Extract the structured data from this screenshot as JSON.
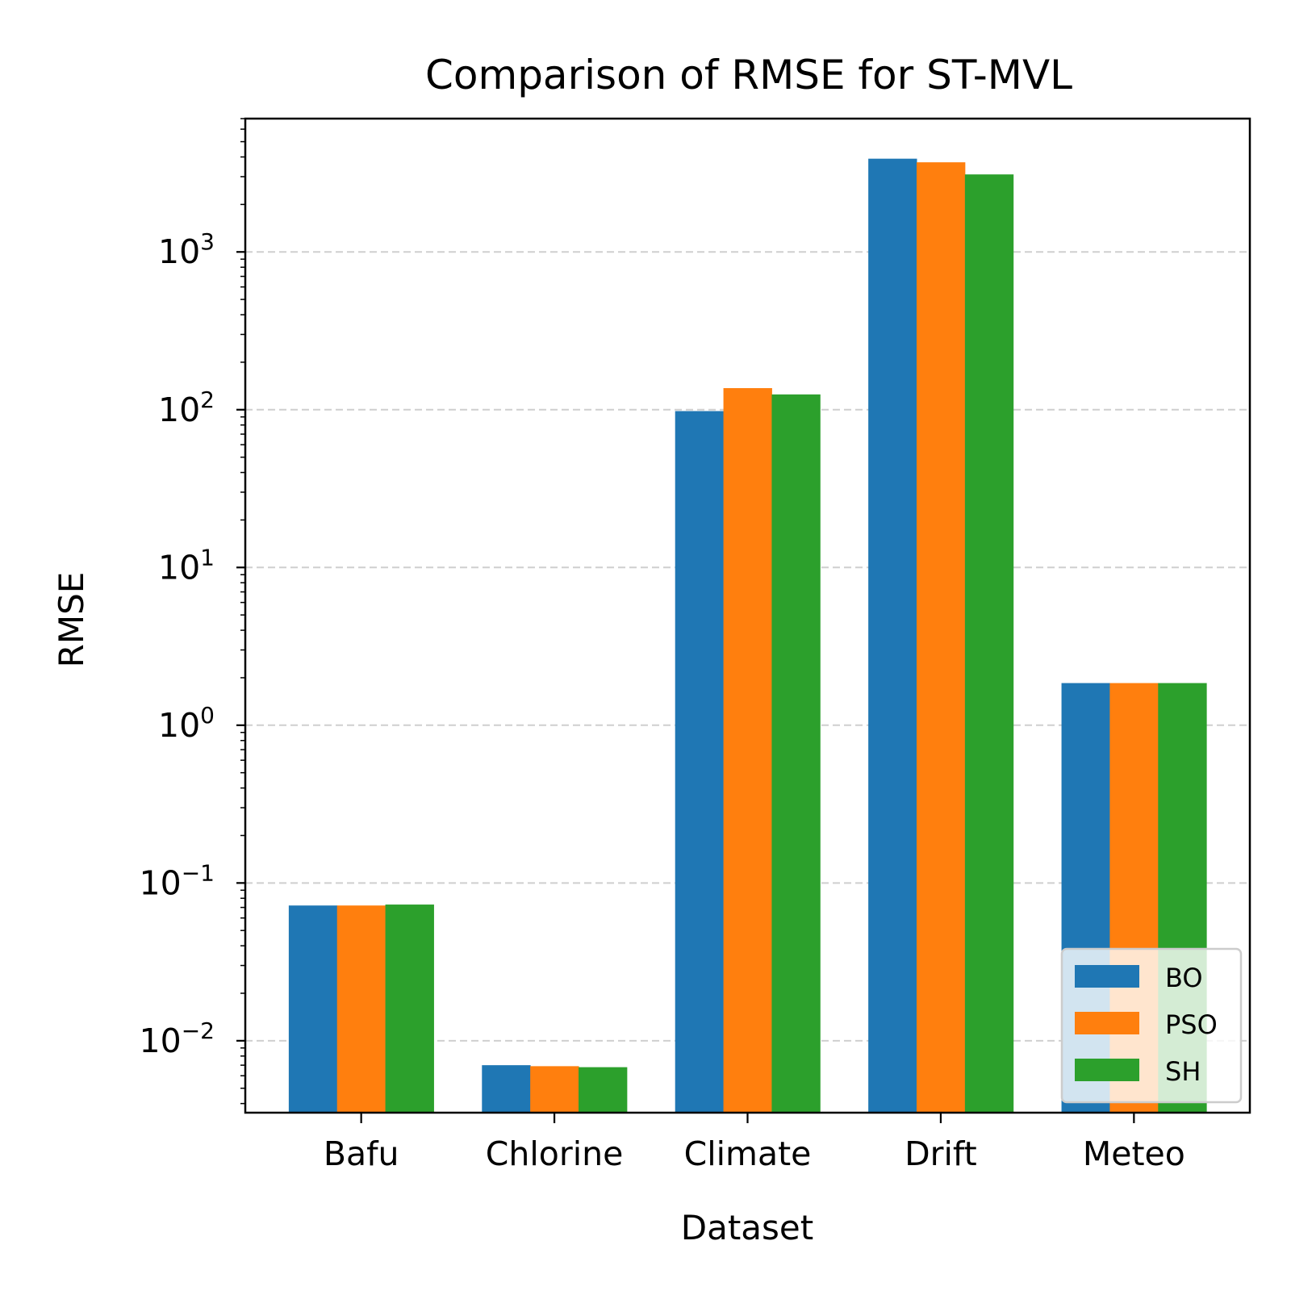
{
  "chart_data": {
    "type": "bar",
    "title": "Comparison of RMSE for ST-MVL",
    "xlabel": "Dataset",
    "ylabel": "RMSE",
    "yscale": "log",
    "ylim": [
      0.0035,
      7000
    ],
    "grid": "y-major dashed",
    "legend_position": "lower-right",
    "categories": [
      "Bafu",
      "Chlorine",
      "Climate",
      "Drift",
      "Meteo"
    ],
    "yticks": [
      {
        "base": "10",
        "exp": "−2",
        "value": 0.01
      },
      {
        "base": "10",
        "exp": "−1",
        "value": 0.1
      },
      {
        "base": "10",
        "exp": "0",
        "value": 1
      },
      {
        "base": "10",
        "exp": "1",
        "value": 10
      },
      {
        "base": "10",
        "exp": "2",
        "value": 100
      },
      {
        "base": "10",
        "exp": "3",
        "value": 1000
      }
    ],
    "series": [
      {
        "name": "BO",
        "color": "#1f77b4",
        "values": [
          0.072,
          0.007,
          98,
          3900,
          1.85
        ]
      },
      {
        "name": "PSO",
        "color": "#ff7f0e",
        "values": [
          0.072,
          0.0069,
          137,
          3700,
          1.85
        ]
      },
      {
        "name": "SH",
        "color": "#2ca02c",
        "values": [
          0.073,
          0.0068,
          125,
          3100,
          1.85
        ]
      }
    ]
  }
}
